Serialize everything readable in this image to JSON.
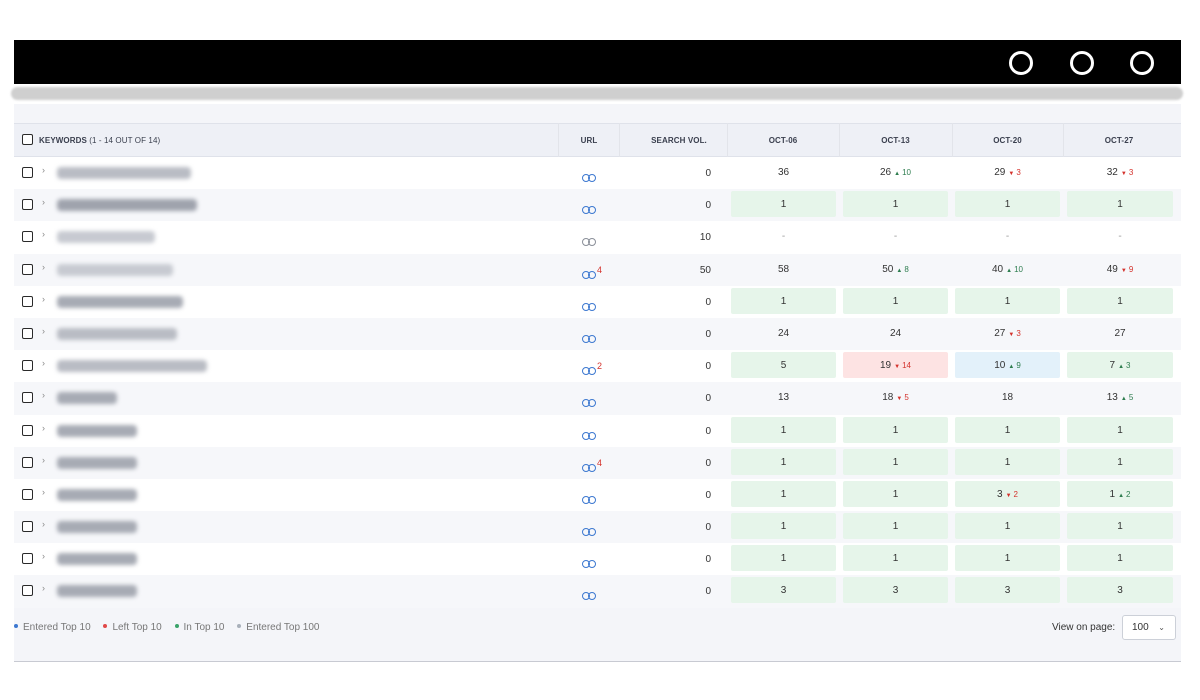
{
  "table": {
    "header": {
      "keywords": "KEYWORDS",
      "keywords_count": "(1 - 14 OUT OF 14)",
      "url": "URL",
      "search_vol": "SEARCH VOL.",
      "dates": [
        "OCT-06",
        "OCT-13",
        "OCT-20",
        "OCT-27"
      ]
    },
    "rows": [
      {
        "url_badge": "",
        "url_grey": false,
        "vol": "0",
        "cells": [
          {
            "v": "36",
            "bg": ""
          },
          {
            "v": "26",
            "d": "10",
            "dir": "up",
            "bg": ""
          },
          {
            "v": "29",
            "d": "3",
            "dir": "down",
            "bg": ""
          },
          {
            "v": "32",
            "d": "3",
            "dir": "down",
            "bg": ""
          }
        ]
      },
      {
        "url_badge": "",
        "url_grey": false,
        "vol": "0",
        "cells": [
          {
            "v": "1",
            "bg": "green"
          },
          {
            "v": "1",
            "bg": "green"
          },
          {
            "v": "1",
            "bg": "green"
          },
          {
            "v": "1",
            "bg": "green"
          }
        ]
      },
      {
        "url_badge": "",
        "url_grey": true,
        "vol": "10",
        "cells": [
          {
            "v": "-",
            "bg": "",
            "dash": true
          },
          {
            "v": "-",
            "bg": "",
            "dash": true
          },
          {
            "v": "-",
            "bg": "",
            "dash": true
          },
          {
            "v": "-",
            "bg": "",
            "dash": true
          }
        ]
      },
      {
        "url_badge": "4",
        "url_grey": false,
        "vol": "50",
        "cells": [
          {
            "v": "58",
            "bg": ""
          },
          {
            "v": "50",
            "d": "8",
            "dir": "up",
            "bg": ""
          },
          {
            "v": "40",
            "d": "10",
            "dir": "up",
            "bg": ""
          },
          {
            "v": "49",
            "d": "9",
            "dir": "down",
            "bg": ""
          }
        ]
      },
      {
        "url_badge": "",
        "url_grey": false,
        "vol": "0",
        "cells": [
          {
            "v": "1",
            "bg": "green"
          },
          {
            "v": "1",
            "bg": "green"
          },
          {
            "v": "1",
            "bg": "green"
          },
          {
            "v": "1",
            "bg": "green"
          }
        ]
      },
      {
        "url_badge": "",
        "url_grey": false,
        "vol": "0",
        "cells": [
          {
            "v": "24",
            "bg": ""
          },
          {
            "v": "24",
            "bg": ""
          },
          {
            "v": "27",
            "d": "3",
            "dir": "down",
            "bg": ""
          },
          {
            "v": "27",
            "bg": ""
          }
        ]
      },
      {
        "url_badge": "2",
        "url_grey": false,
        "vol": "0",
        "cells": [
          {
            "v": "5",
            "bg": "green"
          },
          {
            "v": "19",
            "d": "14",
            "dir": "down",
            "bg": "red"
          },
          {
            "v": "10",
            "d": "9",
            "dir": "up",
            "bg": "blue"
          },
          {
            "v": "7",
            "d": "3",
            "dir": "up",
            "bg": "green"
          }
        ]
      },
      {
        "url_badge": "",
        "url_grey": false,
        "vol": "0",
        "cells": [
          {
            "v": "13",
            "bg": ""
          },
          {
            "v": "18",
            "d": "5",
            "dir": "down",
            "bg": ""
          },
          {
            "v": "18",
            "bg": ""
          },
          {
            "v": "13",
            "d": "5",
            "dir": "up",
            "bg": ""
          }
        ]
      },
      {
        "url_badge": "",
        "url_grey": false,
        "vol": "0",
        "cells": [
          {
            "v": "1",
            "bg": "green"
          },
          {
            "v": "1",
            "bg": "green"
          },
          {
            "v": "1",
            "bg": "green"
          },
          {
            "v": "1",
            "bg": "green"
          }
        ]
      },
      {
        "url_badge": "4",
        "url_grey": false,
        "vol": "0",
        "cells": [
          {
            "v": "1",
            "bg": "green"
          },
          {
            "v": "1",
            "bg": "green"
          },
          {
            "v": "1",
            "bg": "green"
          },
          {
            "v": "1",
            "bg": "green"
          }
        ]
      },
      {
        "url_badge": "",
        "url_grey": false,
        "vol": "0",
        "cells": [
          {
            "v": "1",
            "bg": "green"
          },
          {
            "v": "1",
            "bg": "green"
          },
          {
            "v": "3",
            "d": "2",
            "dir": "down",
            "bg": "green"
          },
          {
            "v": "1",
            "d": "2",
            "dir": "up",
            "bg": "green"
          }
        ]
      },
      {
        "url_badge": "",
        "url_grey": false,
        "vol": "0",
        "cells": [
          {
            "v": "1",
            "bg": "green"
          },
          {
            "v": "1",
            "bg": "green"
          },
          {
            "v": "1",
            "bg": "green"
          },
          {
            "v": "1",
            "bg": "green"
          }
        ]
      },
      {
        "url_badge": "",
        "url_grey": false,
        "vol": "0",
        "cells": [
          {
            "v": "1",
            "bg": "green"
          },
          {
            "v": "1",
            "bg": "green"
          },
          {
            "v": "1",
            "bg": "green"
          },
          {
            "v": "1",
            "bg": "green"
          }
        ]
      },
      {
        "url_badge": "",
        "url_grey": false,
        "vol": "0",
        "cells": [
          {
            "v": "3",
            "bg": "green"
          },
          {
            "v": "3",
            "bg": "green"
          },
          {
            "v": "3",
            "bg": "green"
          },
          {
            "v": "3",
            "bg": "green"
          }
        ]
      }
    ]
  },
  "legend": [
    {
      "label": "Entered Top 10",
      "color": "#3c78d0"
    },
    {
      "label": "Left Top 10",
      "color": "#e04848"
    },
    {
      "label": "In Top 10",
      "color": "#3aa36a"
    },
    {
      "label": "Entered Top 100",
      "color": "#a8b0ba"
    }
  ],
  "pagination": {
    "view_on_page_label": "View on page:",
    "per_page": "100"
  },
  "colors": {
    "green_cell": "#e6f5ea",
    "red_cell": "#fde3e3",
    "blue_cell": "#e3f1fa",
    "link": "#3c78d0",
    "delta_up": "#2e7d4f",
    "delta_down": "#d4322c"
  }
}
